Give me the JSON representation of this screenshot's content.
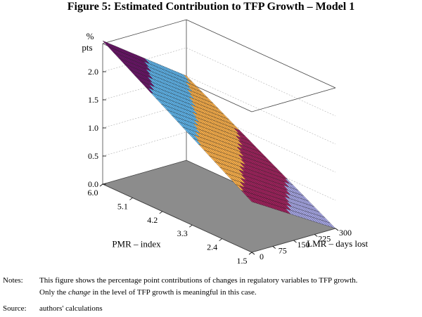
{
  "figure": {
    "title": "Figure 5: Estimated Contribution to TFP Growth – Model 1"
  },
  "chart_data": {
    "type": "surface3d",
    "title": "Figure 5: Estimated Contribution to TFP Growth – Model 1",
    "zlabel_lines": [
      "%",
      "pts"
    ],
    "z_ticks": [
      "0.0",
      "0.5",
      "1.0",
      "1.5",
      "2.0"
    ],
    "zlim": [
      0,
      2.5
    ],
    "pmr_label": "PMR – index",
    "pmr_ticks": [
      "6.0",
      "5.1",
      "4.2",
      "3.3",
      "2.4",
      "1.5"
    ],
    "pmr_range": [
      1.5,
      6.0
    ],
    "lmr_label": "LMR – days lost",
    "lmr_ticks": [
      "0",
      "75",
      "150",
      "225",
      "300"
    ],
    "lmr_range": [
      0,
      300
    ],
    "corner_values": [
      {
        "pmr": 6.0,
        "lmr": 0,
        "z": 2.55
      },
      {
        "pmr": 6.0,
        "lmr": 300,
        "z": 1.5
      },
      {
        "pmr": 1.5,
        "lmr": 0,
        "z": 0.9
      },
      {
        "pmr": 1.5,
        "lmr": 300,
        "z": 0.0
      }
    ],
    "color_bands": [
      {
        "from": 0.0,
        "to": 0.5,
        "color": "#a8a8e8"
      },
      {
        "from": 0.5,
        "to": 1.0,
        "color": "#a0205c"
      },
      {
        "from": 1.0,
        "to": 1.5,
        "color": "#ffb24a"
      },
      {
        "from": 1.5,
        "to": 2.0,
        "color": "#60b8f0"
      },
      {
        "from": 2.0,
        "to": 2.6,
        "color": "#6a1268"
      }
    ],
    "floor_color": "#8c8c8c"
  },
  "notes": {
    "label": "Notes:",
    "line1": "This figure shows the percentage point contributions of changes in regulatory variables to TFP growth.",
    "line2_before": "Only the ",
    "line2_em": "change",
    "line2_after": " in the level of TFP growth is meaningful in this case."
  },
  "source": {
    "label": "Source:",
    "text": "authors' calculations"
  }
}
